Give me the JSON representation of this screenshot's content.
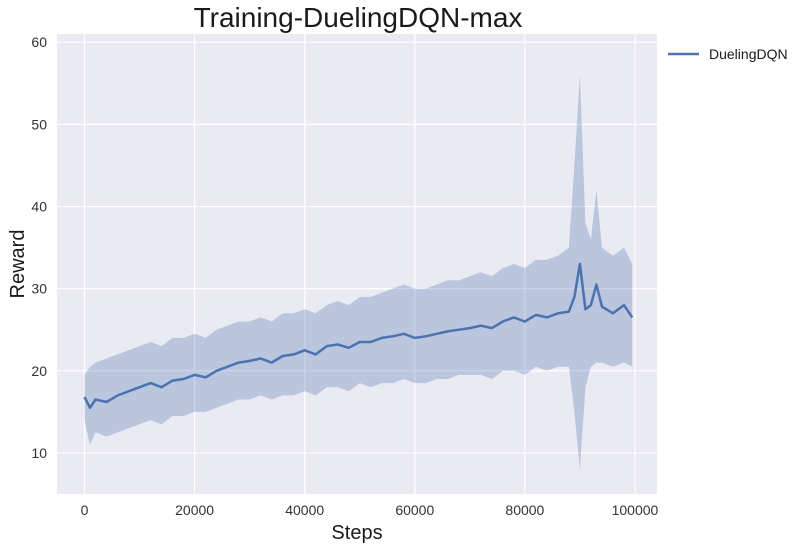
{
  "chart_data": {
    "type": "line",
    "title": "Training-DuelingDQN-max",
    "xlabel": "Steps",
    "ylabel": "Reward",
    "xlim": [
      -5000,
      104000
    ],
    "ylim": [
      5,
      61
    ],
    "xticks": [
      0,
      20000,
      40000,
      60000,
      80000,
      100000
    ],
    "xtick_labels": [
      "0",
      "20000",
      "40000",
      "60000",
      "80000",
      "100000"
    ],
    "yticks": [
      10,
      20,
      30,
      40,
      50,
      60
    ],
    "ytick_labels": [
      "10",
      "20",
      "30",
      "40",
      "50",
      "60"
    ],
    "grid": true,
    "legend_position": "outside-top-right",
    "colors": {
      "line": "#4c72b0",
      "band": "#4c72b0",
      "plot_bg": "#eaeaf2",
      "grid": "#ffffff"
    },
    "series": [
      {
        "name": "DuelingDQN",
        "x": [
          0,
          1000,
          2000,
          4000,
          6000,
          8000,
          10000,
          12000,
          14000,
          16000,
          18000,
          20000,
          22000,
          24000,
          26000,
          28000,
          30000,
          32000,
          34000,
          36000,
          38000,
          40000,
          42000,
          44000,
          46000,
          48000,
          50000,
          52000,
          54000,
          56000,
          58000,
          60000,
          62000,
          64000,
          66000,
          68000,
          70000,
          72000,
          74000,
          76000,
          78000,
          80000,
          82000,
          84000,
          86000,
          88000,
          89000,
          90000,
          91000,
          92000,
          93000,
          94000,
          96000,
          98000,
          99500
        ],
        "y": [
          16.8,
          15.5,
          16.5,
          16.2,
          17.0,
          17.5,
          18.0,
          18.5,
          18.0,
          18.8,
          19.0,
          19.5,
          19.2,
          20.0,
          20.5,
          21.0,
          21.2,
          21.5,
          21.0,
          21.8,
          22.0,
          22.5,
          22.0,
          23.0,
          23.2,
          22.8,
          23.5,
          23.5,
          24.0,
          24.2,
          24.5,
          24.0,
          24.2,
          24.5,
          24.8,
          25.0,
          25.2,
          25.5,
          25.2,
          26.0,
          26.5,
          26.0,
          26.8,
          26.5,
          27.0,
          27.2,
          29.0,
          33.0,
          27.5,
          28.0,
          30.5,
          27.8,
          27.0,
          28.0,
          26.5
        ],
        "lower": [
          14.0,
          11.0,
          12.5,
          12.0,
          12.5,
          13.0,
          13.5,
          14.0,
          13.5,
          14.5,
          14.5,
          15.0,
          15.0,
          15.5,
          16.0,
          16.5,
          16.5,
          17.0,
          16.5,
          17.0,
          17.0,
          17.5,
          17.0,
          18.0,
          18.0,
          17.5,
          18.5,
          18.0,
          18.5,
          18.5,
          19.0,
          18.5,
          18.5,
          19.0,
          19.0,
          19.5,
          19.5,
          19.5,
          19.0,
          20.0,
          20.0,
          19.5,
          20.5,
          20.0,
          20.5,
          20.5,
          15.0,
          8.0,
          18.0,
          20.5,
          21.0,
          21.0,
          20.5,
          21.0,
          20.5
        ],
        "upper": [
          19.5,
          20.5,
          21.0,
          21.5,
          22.0,
          22.5,
          23.0,
          23.5,
          23.0,
          24.0,
          24.0,
          24.5,
          24.0,
          25.0,
          25.5,
          26.0,
          26.0,
          26.5,
          26.0,
          27.0,
          27.0,
          27.5,
          27.0,
          28.0,
          28.5,
          28.0,
          29.0,
          29.0,
          29.5,
          30.0,
          30.5,
          30.0,
          30.0,
          30.5,
          31.0,
          31.0,
          31.5,
          32.0,
          31.5,
          32.5,
          33.0,
          32.5,
          33.5,
          33.5,
          34.0,
          35.0,
          45.0,
          56.0,
          38.0,
          36.0,
          42.0,
          35.0,
          34.0,
          35.0,
          33.0
        ]
      }
    ]
  }
}
